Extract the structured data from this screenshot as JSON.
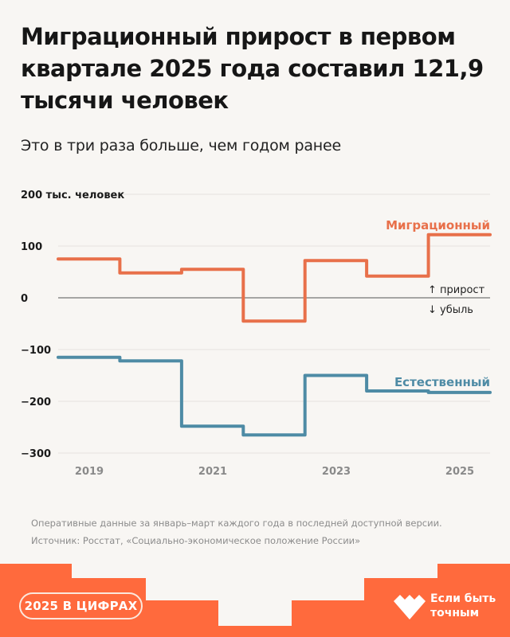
{
  "header": {
    "title": "Миграционный прирост в первом квартале 2025 года составил 121,9 тысячи человек",
    "subtitle": "Это в три раза больше, чем годом ранее"
  },
  "chart_data": {
    "type": "line",
    "step": true,
    "title": "Миграционный прирост в первом квартале 2025 года составил 121,9 тысячи человек",
    "subtitle": "Это в три раза больше, чем годом ранее",
    "ylabel": "тыс. человек",
    "y_tick_labels": [
      "200 тыс. человек",
      "100",
      "0",
      "−100",
      "−200",
      "−300"
    ],
    "y_ticks": [
      200,
      100,
      0,
      -100,
      -200,
      -300
    ],
    "ylim": [
      -300,
      200
    ],
    "x": [
      2019,
      2020,
      2021,
      2022,
      2023,
      2024,
      2025
    ],
    "x_tick_labels": [
      "2019",
      "2021",
      "2023",
      "2025"
    ],
    "series": [
      {
        "name": "Миграционный",
        "color": "#E8704A",
        "values": [
          75,
          48,
          55,
          -45,
          72,
          42,
          121.9
        ]
      },
      {
        "name": "Естественный",
        "color": "#4E8BA5",
        "values": [
          -115,
          -122,
          -248,
          -265,
          -150,
          -180,
          -183
        ]
      }
    ],
    "annotations": {
      "up": "↑ прирост",
      "down": "↓ убыль"
    },
    "grid": true
  },
  "notes": {
    "line1": "Оперативные данные за январь–март каждого года в последней доступной версии.",
    "line2": "Источник: Росстат, «Социально-экономическое положение России»"
  },
  "footer": {
    "badge": "2025 В ЦИФРАХ",
    "brand_line1": "Если быть",
    "brand_line2": "точным",
    "color": "#FF6A3D"
  }
}
